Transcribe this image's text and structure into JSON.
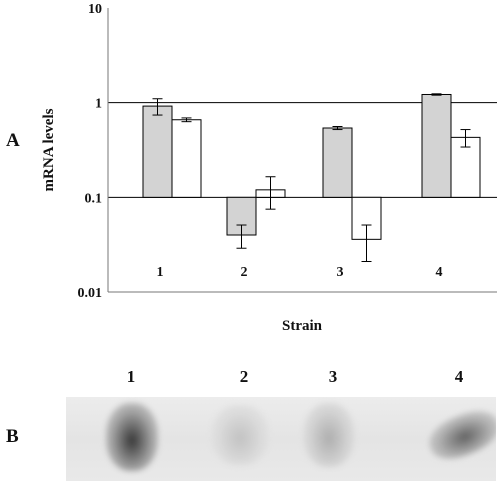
{
  "panels": {
    "a": "A",
    "b": "B"
  },
  "chart_data": {
    "type": "bar",
    "scale": "log",
    "ylim": [
      0.01,
      10
    ],
    "yticks": [
      "10",
      "1",
      "0.1",
      "0.01"
    ],
    "ytick_values": [
      10,
      1,
      0.1,
      0.01
    ],
    "ylabel": "mRNA levels",
    "xlabel": "Strain",
    "categories": [
      "1",
      "2",
      "3",
      "4"
    ],
    "grid": "horizontal lines at 1 and 0.1",
    "legend": "none",
    "series": [
      {
        "color": "#d3d3d3",
        "values": [
          0.92,
          0.04,
          0.54,
          1.22
        ],
        "errors": [
          0.18,
          0.011,
          0.02,
          0.02
        ]
      },
      {
        "color": "#ffffff",
        "values": [
          0.66,
          0.12,
          0.036,
          0.43
        ],
        "errors": [
          0.03,
          0.045,
          0.015,
          0.09
        ]
      }
    ]
  },
  "blot": {
    "lanes": [
      "1",
      "2",
      "3",
      "4"
    ],
    "intensity": [
      1.0,
      0.18,
      0.3,
      0.75
    ]
  }
}
